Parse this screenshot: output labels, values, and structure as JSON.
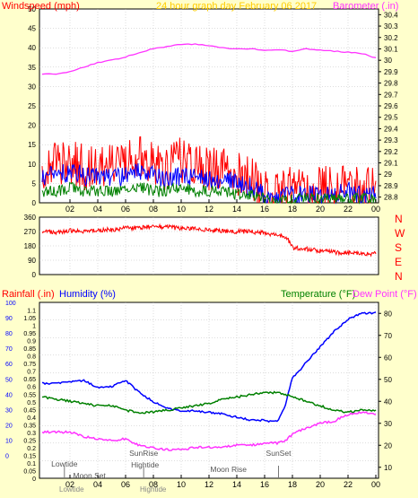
{
  "colors": {
    "background": "#ffffcc",
    "panel_background": "#ffffff",
    "grid": "#bbbbbb",
    "tick_text": "#000000",
    "wind_speed": "#ff0000",
    "wind_avg": "#0000ff",
    "wind_low": "#008000",
    "barometer": "#ff33ff",
    "direction": "#ff0000",
    "rainfall": "#ff0000",
    "humidity": "#0000ff",
    "temperature": "#008000",
    "dew_point": "#ff33ff",
    "title": "#ffcc00"
  },
  "chart_data": [
    {
      "type": "line",
      "title": "24 hour graph day   February 06 2017",
      "left_axis_label": "Windspeed (mph)",
      "right_axis_label": "Barometer (.in)",
      "x_tick_labels": [
        "02",
        "04",
        "06",
        "08",
        "10",
        "12",
        "14",
        "16",
        "18",
        "20",
        "22",
        "00"
      ],
      "left_ticks": [
        "0",
        "5",
        "10",
        "15",
        "20",
        "25",
        "30",
        "35",
        "40",
        "45",
        "50"
      ],
      "left_ylim": [
        0,
        50
      ],
      "right_ticks": [
        "28.8",
        "28.9",
        "29",
        "29.1",
        "29.2",
        "29.3",
        "29.4",
        "29.5",
        "29.6",
        "29.7",
        "29.8",
        "29.9",
        "30",
        "30.1",
        "30.2",
        "30.3",
        "30.4"
      ],
      "right_ylim": [
        28.75,
        30.45
      ],
      "grid": true,
      "series": [
        {
          "key": "gust",
          "axis": "left",
          "color": "#ff0000",
          "x": [
            0,
            1,
            2,
            3,
            4,
            5,
            6,
            7,
            8,
            9,
            10,
            11,
            12,
            13,
            14,
            15,
            16,
            16.5,
            17,
            17.5,
            18,
            19,
            20,
            21,
            22,
            23,
            24
          ],
          "values": [
            9,
            10,
            11,
            9,
            10,
            9,
            11,
            12,
            10,
            9,
            11,
            10,
            9,
            9,
            8,
            6,
            3,
            1,
            2,
            4,
            3,
            3,
            4,
            4,
            5,
            4,
            3
          ]
        },
        {
          "key": "average",
          "axis": "left",
          "color": "#0000ff",
          "x": [
            0,
            1,
            2,
            3,
            4,
            5,
            6,
            7,
            8,
            9,
            10,
            11,
            12,
            13,
            14,
            15,
            16,
            16.5,
            17,
            17.5,
            18,
            19,
            20,
            21,
            22,
            23,
            24
          ],
          "values": [
            7,
            7,
            8,
            7,
            7,
            6,
            7,
            8,
            7,
            6,
            7,
            7,
            6,
            6,
            5,
            4,
            2,
            0.5,
            1,
            2,
            2,
            2,
            2,
            2,
            3,
            2,
            2
          ]
        },
        {
          "key": "low",
          "axis": "left",
          "color": "#008000",
          "x": [
            0,
            1,
            2,
            3,
            4,
            5,
            6,
            7,
            8,
            9,
            10,
            11,
            12,
            13,
            14,
            15,
            16,
            16.5,
            17,
            17.5,
            18,
            19,
            20,
            21,
            22,
            23,
            24
          ],
          "values": [
            3,
            3,
            4,
            3,
            3,
            3,
            3,
            4,
            3,
            3,
            4,
            3,
            3,
            3,
            2,
            2,
            1,
            0,
            0,
            1,
            1,
            1,
            1,
            1,
            1,
            1,
            1
          ]
        },
        {
          "key": "barometer",
          "axis": "right",
          "color": "#ff33ff",
          "x": [
            0,
            1,
            2,
            3,
            4,
            5,
            6,
            7,
            8,
            9,
            10,
            11,
            12,
            13,
            14,
            15,
            16,
            17,
            18,
            19,
            20,
            21,
            22,
            23,
            24
          ],
          "values": [
            29.88,
            29.88,
            29.9,
            29.94,
            29.98,
            30.0,
            30.03,
            30.07,
            30.1,
            30.12,
            30.14,
            30.14,
            30.13,
            30.11,
            30.1,
            30.1,
            30.09,
            30.09,
            30.08,
            30.1,
            30.09,
            30.08,
            30.07,
            30.06,
            30.02
          ]
        }
      ]
    },
    {
      "type": "line",
      "left_ticks": [
        "0",
        "90",
        "180",
        "270",
        "360"
      ],
      "left_ylim": [
        0,
        360
      ],
      "right_labels": [
        "N",
        "W",
        "S",
        "E",
        "N"
      ],
      "grid": true,
      "series": [
        {
          "key": "direction",
          "axis": "left",
          "color": "#ff0000",
          "x": [
            0,
            1,
            2,
            3,
            4,
            5,
            6,
            7,
            8,
            9,
            10,
            11,
            12,
            13,
            14,
            15,
            16,
            16.8,
            17.2,
            17.6,
            18,
            19,
            20,
            21,
            22,
            23,
            24
          ],
          "values": [
            270,
            265,
            275,
            272,
            280,
            282,
            290,
            295,
            300,
            298,
            290,
            285,
            280,
            275,
            270,
            270,
            260,
            250,
            240,
            230,
            170,
            160,
            150,
            140,
            135,
            130,
            130
          ]
        }
      ]
    },
    {
      "type": "line",
      "rainfall_label": "Rainfall (.in)",
      "humidity_label": "Humidity (%)",
      "temperature_label": "Temperature (°F)",
      "dew_point_label": "Dew Point (°F)",
      "x_tick_labels": [
        "02",
        "04",
        "06",
        "08",
        "10",
        "12",
        "14",
        "16",
        "18",
        "20",
        "22",
        "00"
      ],
      "humidity_ticks": [
        "0",
        "10",
        "20",
        "30",
        "40",
        "50",
        "60",
        "70",
        "80",
        "90",
        "100"
      ],
      "rain_ticks": [
        "0",
        "0.05",
        "0.1",
        "0.15",
        "0.2",
        "0.25",
        "0.3",
        "0.35",
        "0.4",
        "0.45",
        "0.5",
        "0.55",
        "0.6",
        "0.65",
        "0.7",
        "0.75",
        "0.8",
        "0.85",
        "0.9",
        "0.95",
        "1",
        "1.05",
        "1.1"
      ],
      "rain_ylim": [
        0,
        1.15
      ],
      "temp_ticks": [
        "10",
        "20",
        "30",
        "40",
        "50",
        "60",
        "70",
        "80"
      ],
      "temp_ylim": [
        5,
        85
      ],
      "grid": true,
      "series": [
        {
          "key": "humidity",
          "axis": "rain",
          "color": "#0000ff",
          "x": [
            0,
            1,
            2,
            3,
            4,
            5,
            6,
            7,
            8,
            9,
            10,
            11,
            12,
            13,
            14,
            15,
            16,
            16.5,
            17,
            17.5,
            18,
            18.5,
            19,
            20,
            21,
            22,
            23,
            24
          ],
          "values": [
            0.62,
            0.62,
            0.63,
            0.64,
            0.59,
            0.6,
            0.64,
            0.56,
            0.5,
            0.46,
            0.44,
            0.44,
            0.43,
            0.42,
            0.4,
            0.38,
            0.38,
            0.37,
            0.38,
            0.48,
            0.66,
            0.7,
            0.76,
            0.86,
            0.96,
            1.04,
            1.08,
            1.08
          ]
        },
        {
          "key": "temperature",
          "axis": "temp",
          "color": "#008000",
          "x": [
            0,
            1,
            2,
            3,
            4,
            5,
            6,
            7,
            8,
            9,
            10,
            11,
            12,
            13,
            14,
            15,
            16,
            17,
            18,
            19,
            20,
            21,
            22,
            23,
            24
          ],
          "values": [
            42,
            41,
            40,
            39,
            38,
            38,
            36,
            35,
            35,
            36,
            37,
            38,
            39,
            41,
            42,
            43,
            44,
            44,
            42,
            40,
            38,
            36,
            35,
            36,
            36
          ]
        },
        {
          "key": "dew_point",
          "axis": "temp",
          "color": "#ff33ff",
          "x": [
            0,
            1,
            2,
            3,
            4,
            5,
            6,
            7,
            8,
            9,
            10,
            11,
            12,
            13,
            14,
            15,
            16,
            17,
            17.5,
            18,
            19,
            20,
            21,
            22,
            23,
            24
          ],
          "values": [
            26,
            26,
            26,
            24,
            23,
            22,
            23,
            20,
            19,
            18,
            18,
            19,
            19,
            19,
            20,
            20,
            21,
            21,
            22,
            25,
            28,
            30,
            31,
            34,
            35,
            34
          ]
        }
      ],
      "annotations": [
        "Lowtide",
        "Moon Set",
        "SunRise",
        "Hightide",
        "Moon Rise",
        "SunSet"
      ],
      "bottom_labels": [
        "Lowtide",
        "Hightide"
      ]
    }
  ]
}
